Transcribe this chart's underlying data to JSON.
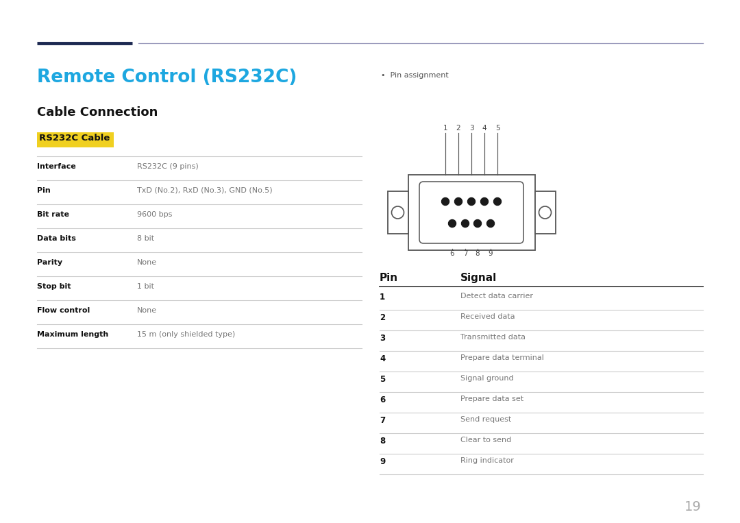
{
  "title": "Remote Control (RS232C)",
  "subtitle": "Cable Connection",
  "section_label": "RS232C Cable",
  "section_label_bg": "#f0d020",
  "title_color": "#1da7e0",
  "header_line_color1": "#1d2951",
  "header_line_color2": "#9999bb",
  "table_left": {
    "headers": [
      "Interface",
      "Pin",
      "Bit rate",
      "Data bits",
      "Parity",
      "Stop bit",
      "Flow control",
      "Maximum length"
    ],
    "values": [
      "RS232C (9 pins)",
      "TxD (No.2), RxD (No.3), GND (No.5)",
      "9600 bps",
      "8 bit",
      "None",
      "1 bit",
      "None",
      "15 m (only shielded type)"
    ]
  },
  "pin_assignment_label": "Pin assignment",
  "pin_table": {
    "pins": [
      "1",
      "2",
      "3",
      "4",
      "5",
      "6",
      "7",
      "8",
      "9"
    ],
    "signals": [
      "Detect data carrier",
      "Received data",
      "Transmitted data",
      "Prepare data terminal",
      "Signal ground",
      "Prepare data set",
      "Send request",
      "Clear to send",
      "Ring indicator"
    ]
  },
  "bg_color": "#ffffff",
  "text_color": "#333333",
  "line_color": "#cccccc",
  "bold_color": "#111111",
  "page_number": "19",
  "connector_color": "#555555",
  "dot_color": "#1a1a1a"
}
